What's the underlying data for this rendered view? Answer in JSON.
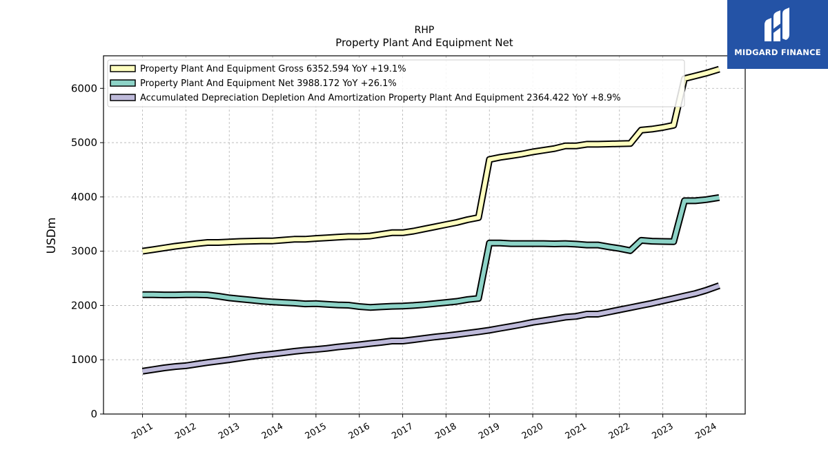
{
  "brand": {
    "name": "MIDGARD FINANCE",
    "icon": "midgard-logo-icon",
    "color": "#2453a6"
  },
  "chart_data": {
    "type": "line",
    "title": "RHP",
    "subtitle": "Property Plant And Equipment Net",
    "ylabel": "USDm",
    "xlabel": "",
    "ylim": [
      0,
      6600
    ],
    "xlim": [
      2010.1,
      2024.9
    ],
    "yticks": [
      "0",
      "1000",
      "2000",
      "3000",
      "4000",
      "5000",
      "6000"
    ],
    "xticks": [
      "2011",
      "2012",
      "2013",
      "2014",
      "2015",
      "2016",
      "2017",
      "2018",
      "2019",
      "2020",
      "2021",
      "2022",
      "2023",
      "2024"
    ],
    "grid": true,
    "legend_position": "top-left",
    "series": [
      {
        "name": "Property Plant And Equipment Gross",
        "legend_label": "Property Plant And Equipment Gross  6352.594 YoY +19.1%",
        "color": "#ffffbf",
        "x": [
          2011.0,
          2011.25,
          2011.5,
          2011.75,
          2012.0,
          2012.25,
          2012.5,
          2012.75,
          2013.0,
          2013.25,
          2013.5,
          2013.75,
          2014.0,
          2014.25,
          2014.5,
          2014.75,
          2015.0,
          2015.25,
          2015.5,
          2015.75,
          2016.0,
          2016.25,
          2016.5,
          2016.75,
          2017.0,
          2017.25,
          2017.5,
          2017.75,
          2018.0,
          2018.25,
          2018.5,
          2018.75,
          2019.0,
          2019.25,
          2019.5,
          2019.75,
          2020.0,
          2020.25,
          2020.5,
          2020.75,
          2021.0,
          2021.25,
          2021.5,
          2021.75,
          2022.0,
          2022.25,
          2022.5,
          2022.75,
          2023.0,
          2023.25,
          2023.5,
          2023.75,
          2024.0,
          2024.3
        ],
        "values": [
          3000,
          3030,
          3060,
          3090,
          3115,
          3140,
          3160,
          3160,
          3170,
          3180,
          3185,
          3190,
          3190,
          3205,
          3220,
          3220,
          3235,
          3245,
          3260,
          3270,
          3270,
          3280,
          3310,
          3340,
          3340,
          3370,
          3410,
          3450,
          3490,
          3530,
          3580,
          3620,
          4690,
          4730,
          4760,
          4790,
          4830,
          4860,
          4890,
          4940,
          4940,
          4970,
          4970,
          4975,
          4980,
          4985,
          5230,
          5250,
          5280,
          5320,
          6180,
          6230,
          6280,
          6352.594
        ]
      },
      {
        "name": "Property Plant And Equipment Net",
        "legend_label": "Property Plant And Equipment Net  3988.172 YoY +26.1%",
        "color": "#8dd3c7",
        "x": [
          2011.0,
          2011.25,
          2011.5,
          2011.75,
          2012.0,
          2012.25,
          2012.5,
          2012.75,
          2013.0,
          2013.25,
          2013.5,
          2013.75,
          2014.0,
          2014.25,
          2014.5,
          2014.75,
          2015.0,
          2015.25,
          2015.5,
          2015.75,
          2016.0,
          2016.25,
          2016.5,
          2016.75,
          2017.0,
          2017.25,
          2017.5,
          2017.75,
          2018.0,
          2018.25,
          2018.5,
          2018.75,
          2019.0,
          2019.25,
          2019.5,
          2019.75,
          2020.0,
          2020.25,
          2020.5,
          2020.75,
          2021.0,
          2021.25,
          2021.5,
          2021.75,
          2022.0,
          2022.25,
          2022.5,
          2022.75,
          2023.0,
          2023.25,
          2023.5,
          2023.75,
          2024.0,
          2024.3
        ],
        "values": [
          2200,
          2200,
          2195,
          2195,
          2200,
          2200,
          2195,
          2170,
          2140,
          2120,
          2100,
          2080,
          2065,
          2055,
          2045,
          2030,
          2035,
          2020,
          2010,
          2005,
          1980,
          1965,
          1975,
          1985,
          1990,
          2000,
          2015,
          2035,
          2055,
          2075,
          2110,
          2130,
          3150,
          3150,
          3140,
          3140,
          3140,
          3140,
          3135,
          3140,
          3130,
          3115,
          3115,
          3080,
          3050,
          3010,
          3200,
          3185,
          3180,
          3175,
          3930,
          3930,
          3950,
          3988.172
        ]
      },
      {
        "name": "Accumulated Depreciation Depletion And Amortization Property Plant And Equipment",
        "legend_label": "Accumulated Depreciation Depletion And Amortization Property Plant And Equipment  2364.422 YoY +8.9%",
        "color": "#bebada",
        "x": [
          2011.0,
          2011.25,
          2011.5,
          2011.75,
          2012.0,
          2012.25,
          2012.5,
          2012.75,
          2013.0,
          2013.25,
          2013.5,
          2013.75,
          2014.0,
          2014.25,
          2014.5,
          2014.75,
          2015.0,
          2015.25,
          2015.5,
          2015.75,
          2016.0,
          2016.25,
          2016.5,
          2016.75,
          2017.0,
          2017.25,
          2017.5,
          2017.75,
          2018.0,
          2018.25,
          2018.5,
          2018.75,
          2019.0,
          2019.25,
          2019.5,
          2019.75,
          2020.0,
          2020.25,
          2020.5,
          2020.75,
          2021.0,
          2021.25,
          2021.5,
          2021.75,
          2022.0,
          2022.25,
          2022.5,
          2022.75,
          2023.0,
          2023.25,
          2023.5,
          2023.75,
          2024.0,
          2024.3
        ],
        "values": [
          790,
          820,
          850,
          875,
          890,
          920,
          950,
          975,
          1000,
          1030,
          1060,
          1085,
          1105,
          1130,
          1155,
          1175,
          1190,
          1210,
          1235,
          1255,
          1275,
          1300,
          1320,
          1345,
          1345,
          1370,
          1395,
          1420,
          1440,
          1465,
          1490,
          1515,
          1545,
          1580,
          1615,
          1650,
          1690,
          1720,
          1750,
          1785,
          1800,
          1840,
          1840,
          1880,
          1920,
          1960,
          2000,
          2040,
          2085,
          2130,
          2175,
          2220,
          2280,
          2364.422
        ]
      }
    ]
  }
}
